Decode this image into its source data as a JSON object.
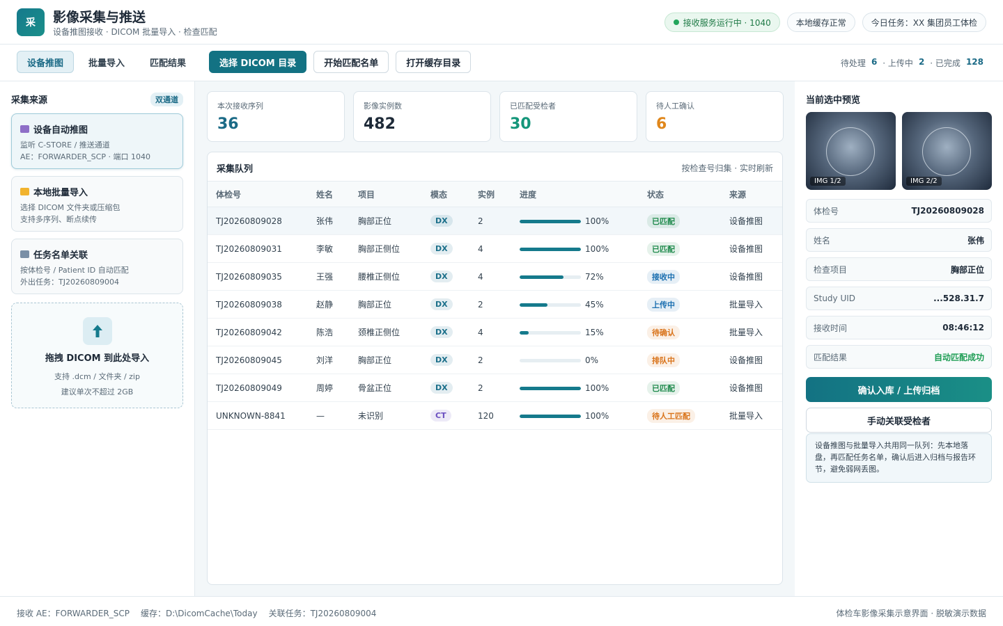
{
  "header": {
    "logo": "采",
    "title": "影像采集与推送",
    "subtitle": "设备推图接收 · DICOM 批量导入 · 检查匹配",
    "status": [
      "接收服务运行中 · 1040",
      "本地缓存正常",
      "今日任务：XX 集团员工体检"
    ]
  },
  "toolbar": {
    "tabs": [
      "设备推图",
      "批量导入",
      "匹配结果"
    ],
    "buttons": [
      "选择 DICOM 目录",
      "开始匹配名单",
      "打开缓存目录"
    ],
    "counts": [
      {
        "label": "待处理",
        "value": 6
      },
      {
        "label": "· 上传中",
        "value": 2
      },
      {
        "label": "· 已完成",
        "value": 128
      }
    ]
  },
  "sources": {
    "title": "采集来源",
    "badge": "双通道",
    "cards": [
      {
        "title": "设备自动推图",
        "lines": [
          "监听 C-STORE / 推送通道",
          "AE：FORWARDER_SCP · 端口 1040"
        ]
      },
      {
        "title": "本地批量导入",
        "lines": [
          "选择 DICOM 文件夹或压缩包",
          "支持多序列、断点续传"
        ]
      },
      {
        "title": "任务名单关联",
        "lines": [
          "按体检号 / Patient ID 自动匹配",
          "外出任务：TJ20260809004"
        ]
      }
    ],
    "drop": {
      "title": "拖拽 DICOM 到此处导入",
      "lines": [
        "支持 .dcm / 文件夹 / zip",
        "建议单次不超过 2GB"
      ]
    }
  },
  "stats": [
    {
      "label": "本次接收序列",
      "value": 36,
      "color": "#1b6a86"
    },
    {
      "label": "影像实例数",
      "value": 482,
      "color": "#1e2a38"
    },
    {
      "label": "已匹配受检者",
      "value": 30,
      "color": "#14967a"
    },
    {
      "label": "待人工确认",
      "value": 6,
      "color": "#e0871c"
    }
  ],
  "queue": {
    "title": "采集队列",
    "hint": "按检查号归集 · 实时刷新",
    "columns": [
      "体检号",
      "姓名",
      "项目",
      "模态",
      "实例",
      "进度",
      "状态",
      "来源"
    ],
    "rows": [
      {
        "id": "TJ20260809028",
        "name": "张伟",
        "item": "胸部正位",
        "modality": {
          "text": "DX",
          "color": "#1b6f8a"
        },
        "instances": 2,
        "progress": {
          "value": 100,
          "label": "100%"
        },
        "status": {
          "text": "已匹配",
          "color": "#1f8a4c"
        },
        "source": "设备推图"
      },
      {
        "id": "TJ20260809031",
        "name": "李敏",
        "item": "胸部正侧位",
        "modality": {
          "text": "DX",
          "color": "#1b6f8a"
        },
        "instances": 4,
        "progress": {
          "value": 100,
          "label": "100%"
        },
        "status": {
          "text": "已匹配",
          "color": "#1f8a4c"
        },
        "source": "设备推图"
      },
      {
        "id": "TJ20260809035",
        "name": "王强",
        "item": "腰椎正侧位",
        "modality": {
          "text": "DX",
          "color": "#1b6f8a"
        },
        "instances": 4,
        "progress": {
          "value": 72,
          "label": "72%"
        },
        "status": {
          "text": "接收中",
          "color": "#1b6fb0"
        },
        "source": "设备推图"
      },
      {
        "id": "TJ20260809038",
        "name": "赵静",
        "item": "胸部正位",
        "modality": {
          "text": "DX",
          "color": "#1b6f8a"
        },
        "instances": 2,
        "progress": {
          "value": 45,
          "label": "45%"
        },
        "status": {
          "text": "上传中",
          "color": "#1b6fb0"
        },
        "source": "批量导入"
      },
      {
        "id": "TJ20260809042",
        "name": "陈浩",
        "item": "颈椎正侧位",
        "modality": {
          "text": "DX",
          "color": "#1b6f8a"
        },
        "instances": 4,
        "progress": {
          "value": 15,
          "label": "15%"
        },
        "status": {
          "text": "待确认",
          "color": "#d9731a"
        },
        "source": "批量导入"
      },
      {
        "id": "TJ20260809045",
        "name": "刘洋",
        "item": "胸部正位",
        "modality": {
          "text": "DX",
          "color": "#1b6f8a"
        },
        "instances": 2,
        "progress": {
          "value": 0,
          "label": "0%"
        },
        "status": {
          "text": "排队中",
          "color": "#d9731a"
        },
        "source": "设备推图"
      },
      {
        "id": "TJ20260809049",
        "name": "周婷",
        "item": "骨盆正位",
        "modality": {
          "text": "DX",
          "color": "#1b6f8a"
        },
        "instances": 2,
        "progress": {
          "value": 100,
          "label": "100%"
        },
        "status": {
          "text": "已匹配",
          "color": "#1f8a4c"
        },
        "source": "设备推图"
      },
      {
        "id": "UNKNOWN-8841",
        "name": "—",
        "item": "未识别",
        "modality": {
          "text": "CT",
          "color": "#6a4fc0"
        },
        "instances": 120,
        "progress": {
          "value": 100,
          "label": "100%"
        },
        "status": {
          "text": "待人工匹配",
          "color": "#d9731a"
        },
        "source": "批量导入"
      }
    ]
  },
  "preview": {
    "title": "当前选中预览",
    "images": [
      "IMG 1/2",
      "IMG 2/2"
    ],
    "fields": [
      {
        "label": "体检号",
        "value": "TJ20260809028"
      },
      {
        "label": "姓名",
        "value": "张伟"
      },
      {
        "label": "检查项目",
        "value": "胸部正位"
      },
      {
        "label": "Study UID",
        "value": "...528.31.7"
      },
      {
        "label": "接收时间",
        "value": "08:46:12"
      },
      {
        "label": "匹配结果",
        "value": "自动匹配成功",
        "color": "#1f9d55"
      }
    ],
    "primary": "确认入库 / 上传归档",
    "secondary": "手动关联受检者",
    "note": "设备推图与批量导入共用同一队列：先本地落盘，再匹配任务名单，确认后进入归档与报告环节，避免弱网丢图。"
  },
  "footer": {
    "items": [
      "接收 AE：FORWARDER_SCP",
      "缓存：D:\\DicomCache\\Today",
      "关联任务：TJ20260809004"
    ],
    "right": "体检车影像采集示意界面 · 脱敏演示数据"
  }
}
